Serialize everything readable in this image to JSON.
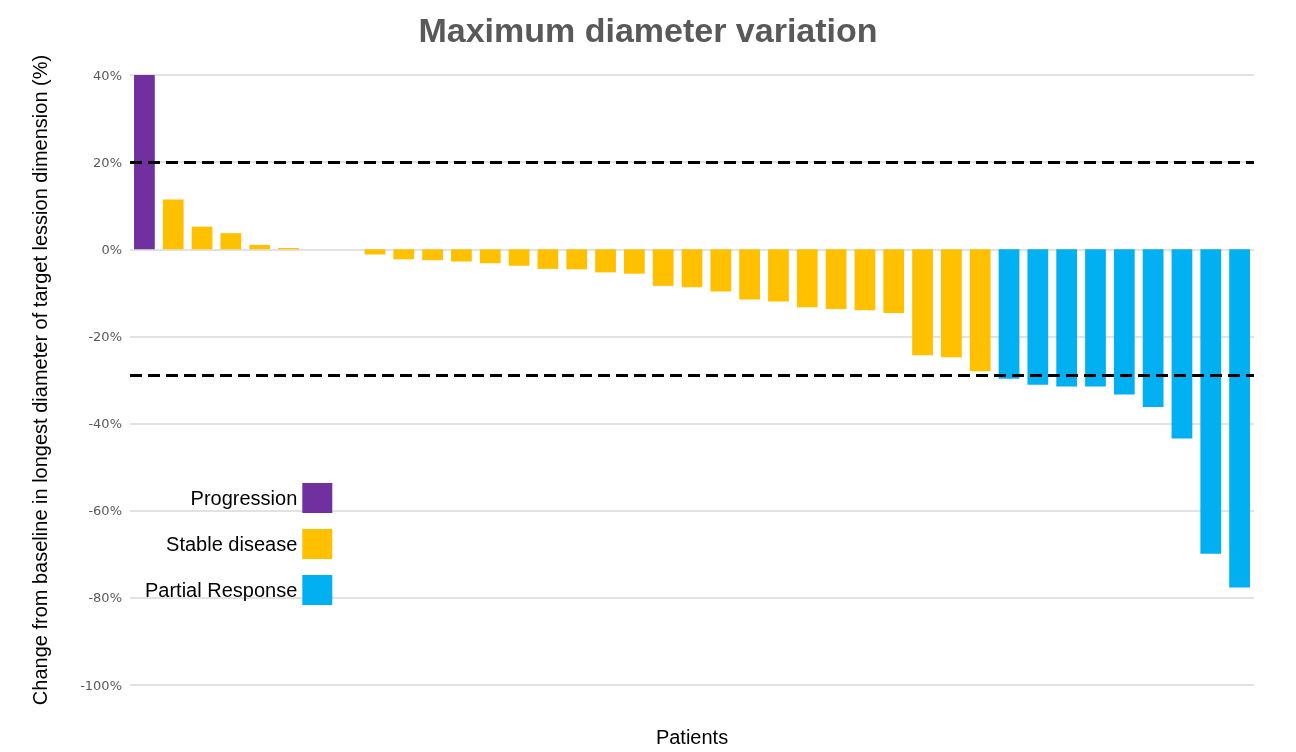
{
  "chart_data": {
    "type": "bar",
    "title": "Maximum diameter variation",
    "xlabel": "Patients",
    "ylabel": "Change from baseline in longest diameter of target lession dimension (%)",
    "categories": [
      null,
      null,
      null,
      null,
      null,
      null,
      null,
      null,
      null,
      null,
      null,
      null,
      null,
      null,
      null,
      null,
      null,
      null,
      null,
      null,
      null,
      null,
      null,
      null,
      null,
      null,
      null,
      null,
      null,
      null,
      null,
      null,
      null,
      null,
      null,
      null,
      null,
      null,
      null
    ],
    "series": [
      {
        "name": "Progression",
        "color": "#7030a0",
        "values": [
          40,
          null,
          null,
          null,
          null,
          null,
          null,
          null,
          null,
          null,
          null,
          null,
          null,
          null,
          null,
          null,
          null,
          null,
          null,
          null,
          null,
          null,
          null,
          null,
          null,
          null,
          null,
          null,
          null,
          null,
          null,
          null,
          null,
          null,
          null,
          null,
          null,
          null,
          null
        ]
      },
      {
        "name": "Stable disease",
        "color": "#ffc000",
        "values": [
          null,
          11.4,
          5.2,
          3.7,
          1.0,
          0.3,
          0,
          0,
          -1.2,
          -2.3,
          -2.5,
          -2.8,
          -3.2,
          -3.8,
          -4.5,
          -4.6,
          -5.3,
          -5.6,
          -8.4,
          -8.7,
          -9.7,
          -11.5,
          -12.0,
          -13.3,
          -13.7,
          -14.0,
          -14.6,
          -24.3,
          -24.8,
          -28.0,
          null,
          null,
          null,
          null,
          null,
          null,
          null,
          null,
          null
        ]
      },
      {
        "name": "Partial Response",
        "color": "#00b0f0",
        "values": [
          null,
          null,
          null,
          null,
          null,
          null,
          null,
          null,
          null,
          null,
          null,
          null,
          null,
          null,
          null,
          null,
          null,
          null,
          null,
          null,
          null,
          null,
          null,
          null,
          null,
          null,
          null,
          null,
          null,
          null,
          -29.7,
          -31.1,
          -31.5,
          -31.5,
          -33.3,
          -36.2,
          -43.4,
          -69.9,
          -77.6
        ]
      }
    ],
    "ylim": [
      -100,
      40
    ],
    "yticks": [
      {
        "value": -100,
        "label": "-100%"
      },
      {
        "value": -80,
        "label": "-80%"
      },
      {
        "value": -60,
        "label": "-60%"
      },
      {
        "value": -40,
        "label": "-40%"
      },
      {
        "value": -20,
        "label": "-20%"
      },
      {
        "value": 0,
        "label": "0%"
      },
      {
        "value": 20,
        "label": "20%"
      },
      {
        "value": 40,
        "label": "40%"
      }
    ],
    "ref_lines": [
      {
        "axis": "y",
        "value": 20,
        "color": "#000000",
        "line_style": "dashed"
      },
      {
        "axis": "y",
        "value": -29,
        "color": "#000000",
        "line_style": "dashed"
      }
    ],
    "grid": "y",
    "legend": "bottom left"
  }
}
